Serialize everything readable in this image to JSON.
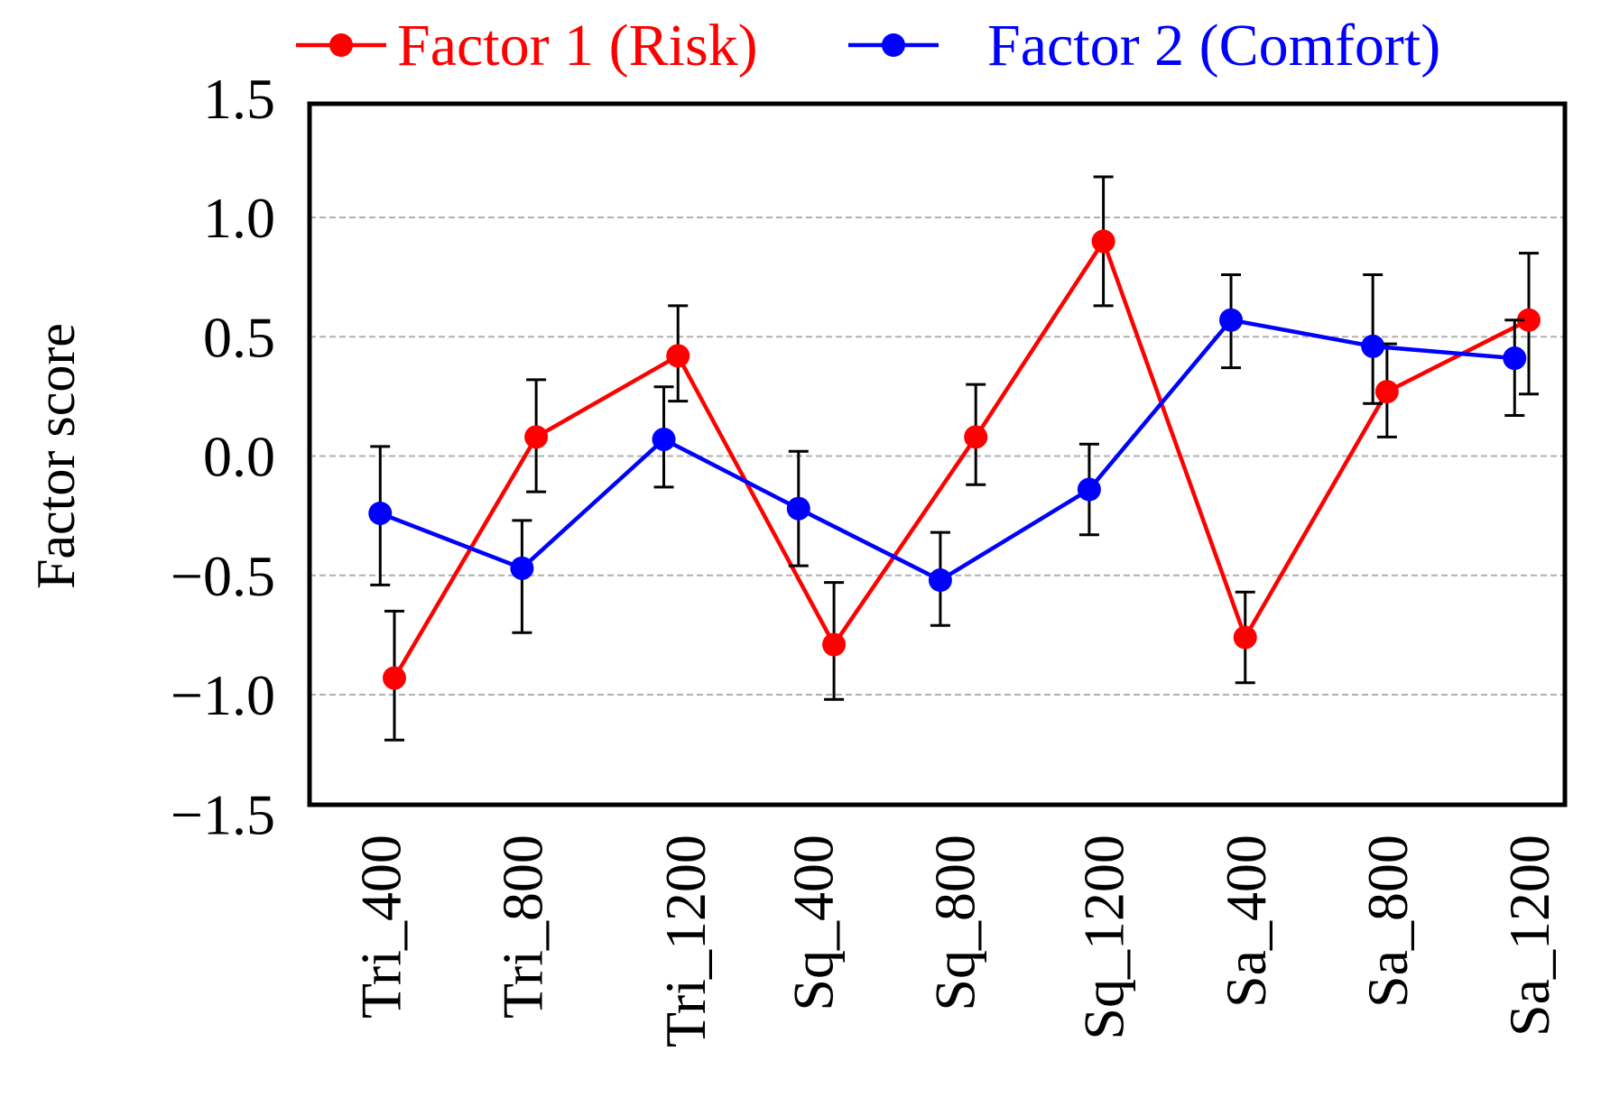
{
  "chart_data": {
    "type": "line",
    "title": "",
    "xlabel": "",
    "ylabel": "Factor score",
    "ylim": [
      -1.5,
      1.5
    ],
    "yticks": [
      1.5,
      1.0,
      0.5,
      0.0,
      -0.5,
      -1.0,
      -1.5
    ],
    "ytick_labels": [
      "1.5",
      "1.0",
      "0.5",
      "0.0",
      "−0.5",
      "−1.0",
      "−1.5"
    ],
    "grid_values": [
      1.0,
      0.5,
      0.0,
      -0.5,
      -1.0
    ],
    "grid": true,
    "legend_position": "top",
    "categories": [
      "Tri_400",
      "Tri_800",
      "Tri_1200",
      "Sq_400",
      "Sq_800",
      "Sq_1200",
      "Sa_400",
      "Sa_800",
      "Sa_1200"
    ],
    "category_positions": [
      0.95,
      1.95,
      3.1,
      4.0,
      5.0,
      6.05,
      7.05,
      8.05,
      9.05
    ],
    "xlim": [
      0.45,
      9.4
    ],
    "series": [
      {
        "name": "Factor 1 (Risk)",
        "color": "#ff0000",
        "x": [
          1.05,
          2.05,
          3.05,
          4.15,
          5.15,
          6.05,
          7.05,
          8.05,
          9.05
        ],
        "values": [
          -0.93,
          0.08,
          0.42,
          -0.79,
          0.08,
          0.9,
          -0.76,
          0.27,
          0.57
        ],
        "err_low": [
          -1.19,
          -0.15,
          0.23,
          -1.02,
          -0.12,
          0.63,
          -0.95,
          0.08,
          0.26
        ],
        "err_high": [
          -0.65,
          0.32,
          0.63,
          -0.53,
          0.3,
          1.17,
          -0.57,
          0.47,
          0.85
        ]
      },
      {
        "name": "Factor 2 (Comfort)",
        "color": "#0000ff",
        "x": [
          0.95,
          1.95,
          2.95,
          3.9,
          4.9,
          5.95,
          6.95,
          7.95,
          8.95
        ],
        "values": [
          -0.24,
          -0.47,
          0.07,
          -0.22,
          -0.52,
          -0.14,
          0.57,
          0.46,
          0.41
        ],
        "err_low": [
          -0.54,
          -0.74,
          -0.13,
          -0.46,
          -0.71,
          -0.33,
          0.37,
          0.22,
          0.17
        ],
        "err_high": [
          0.04,
          -0.27,
          0.29,
          0.02,
          -0.32,
          0.05,
          0.76,
          0.76,
          0.57
        ]
      }
    ]
  }
}
